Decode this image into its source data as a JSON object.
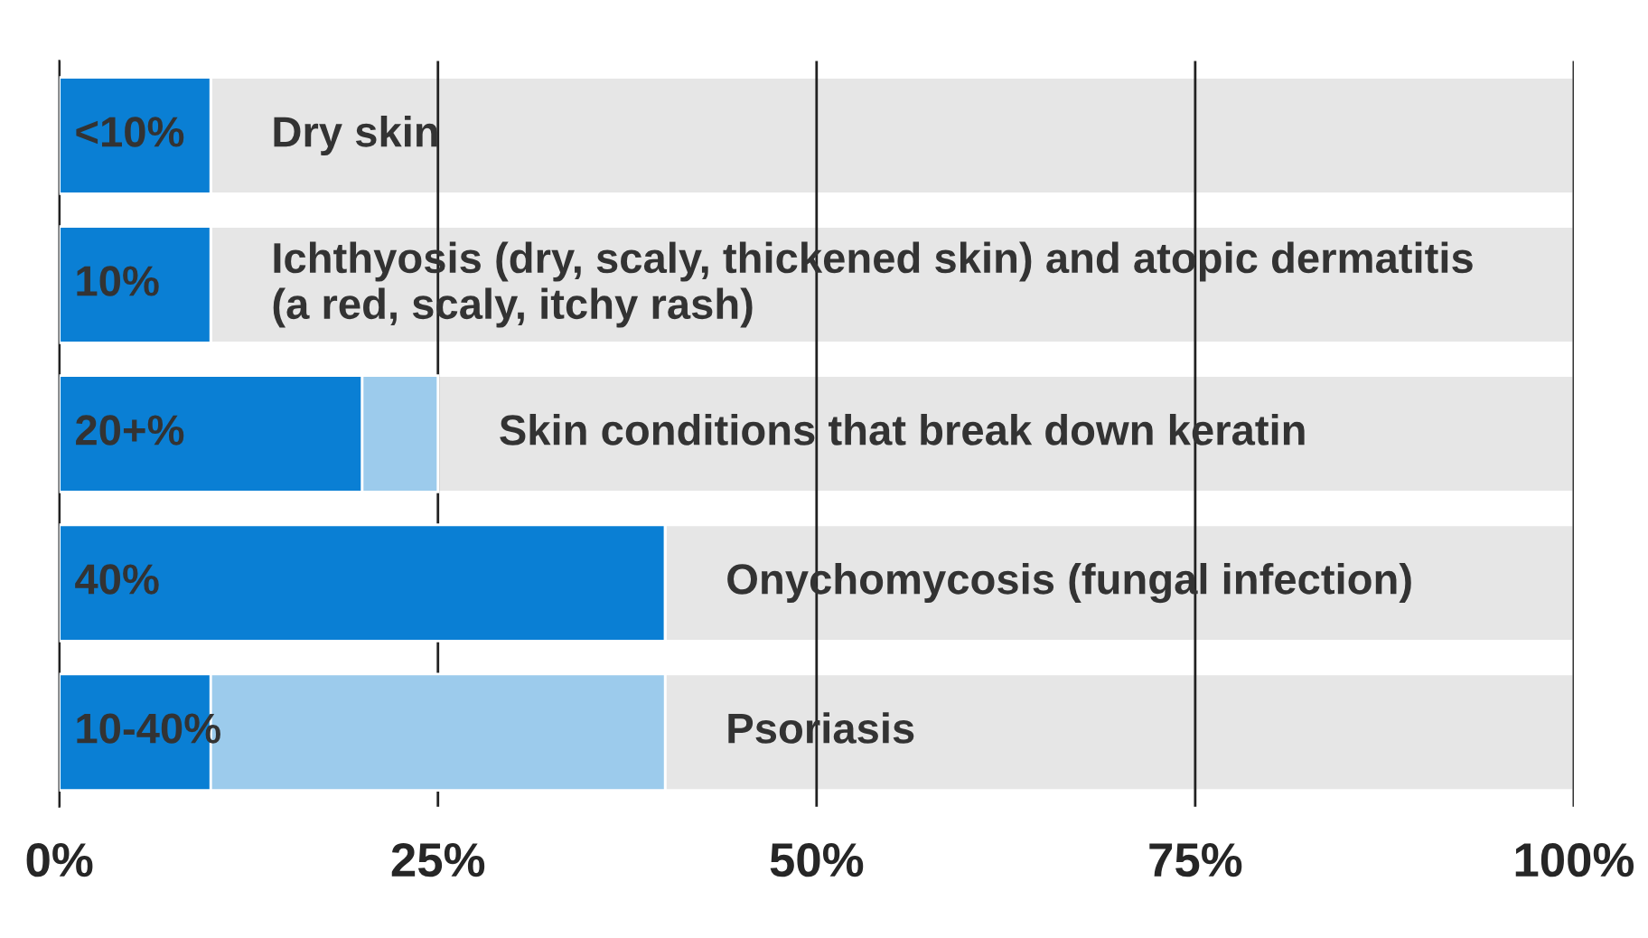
{
  "chart_data": {
    "type": "bar",
    "orientation": "horizontal",
    "stacked": true,
    "categories": [
      "Dry skin",
      "Ichthyosis (dry, scaly, thickened skin) and atopic dermatitis (a red, scaly, itchy rash)",
      "Skin conditions that break down keratin",
      "Onychomycosis (fungal infection)",
      "Psoriasis"
    ],
    "series": [
      {
        "color": "#0a7fd4",
        "values": [
          10,
          10,
          20,
          40,
          10
        ],
        "value_labels": [
          "<10%",
          "10%",
          "20+%",
          "40%",
          null
        ]
      },
      {
        "color": "#9ccbec",
        "values": [
          0,
          0,
          5,
          0,
          30
        ]
      },
      {
        "color": "#e6e6e6",
        "values": [
          90,
          90,
          75,
          60,
          60
        ]
      }
    ],
    "annotations": [
      {
        "text": "10-40%",
        "x": 0,
        "y": "Psoriasis"
      }
    ],
    "xlim": [
      0,
      100
    ],
    "xticks": [
      {
        "value": 0,
        "label": "0%"
      },
      {
        "value": 25,
        "label": "25%"
      },
      {
        "value": 50,
        "label": "50%"
      },
      {
        "value": 75,
        "label": "75%"
      },
      {
        "value": 100,
        "label": "100%"
      }
    ],
    "grid": "x",
    "legend": false
  }
}
